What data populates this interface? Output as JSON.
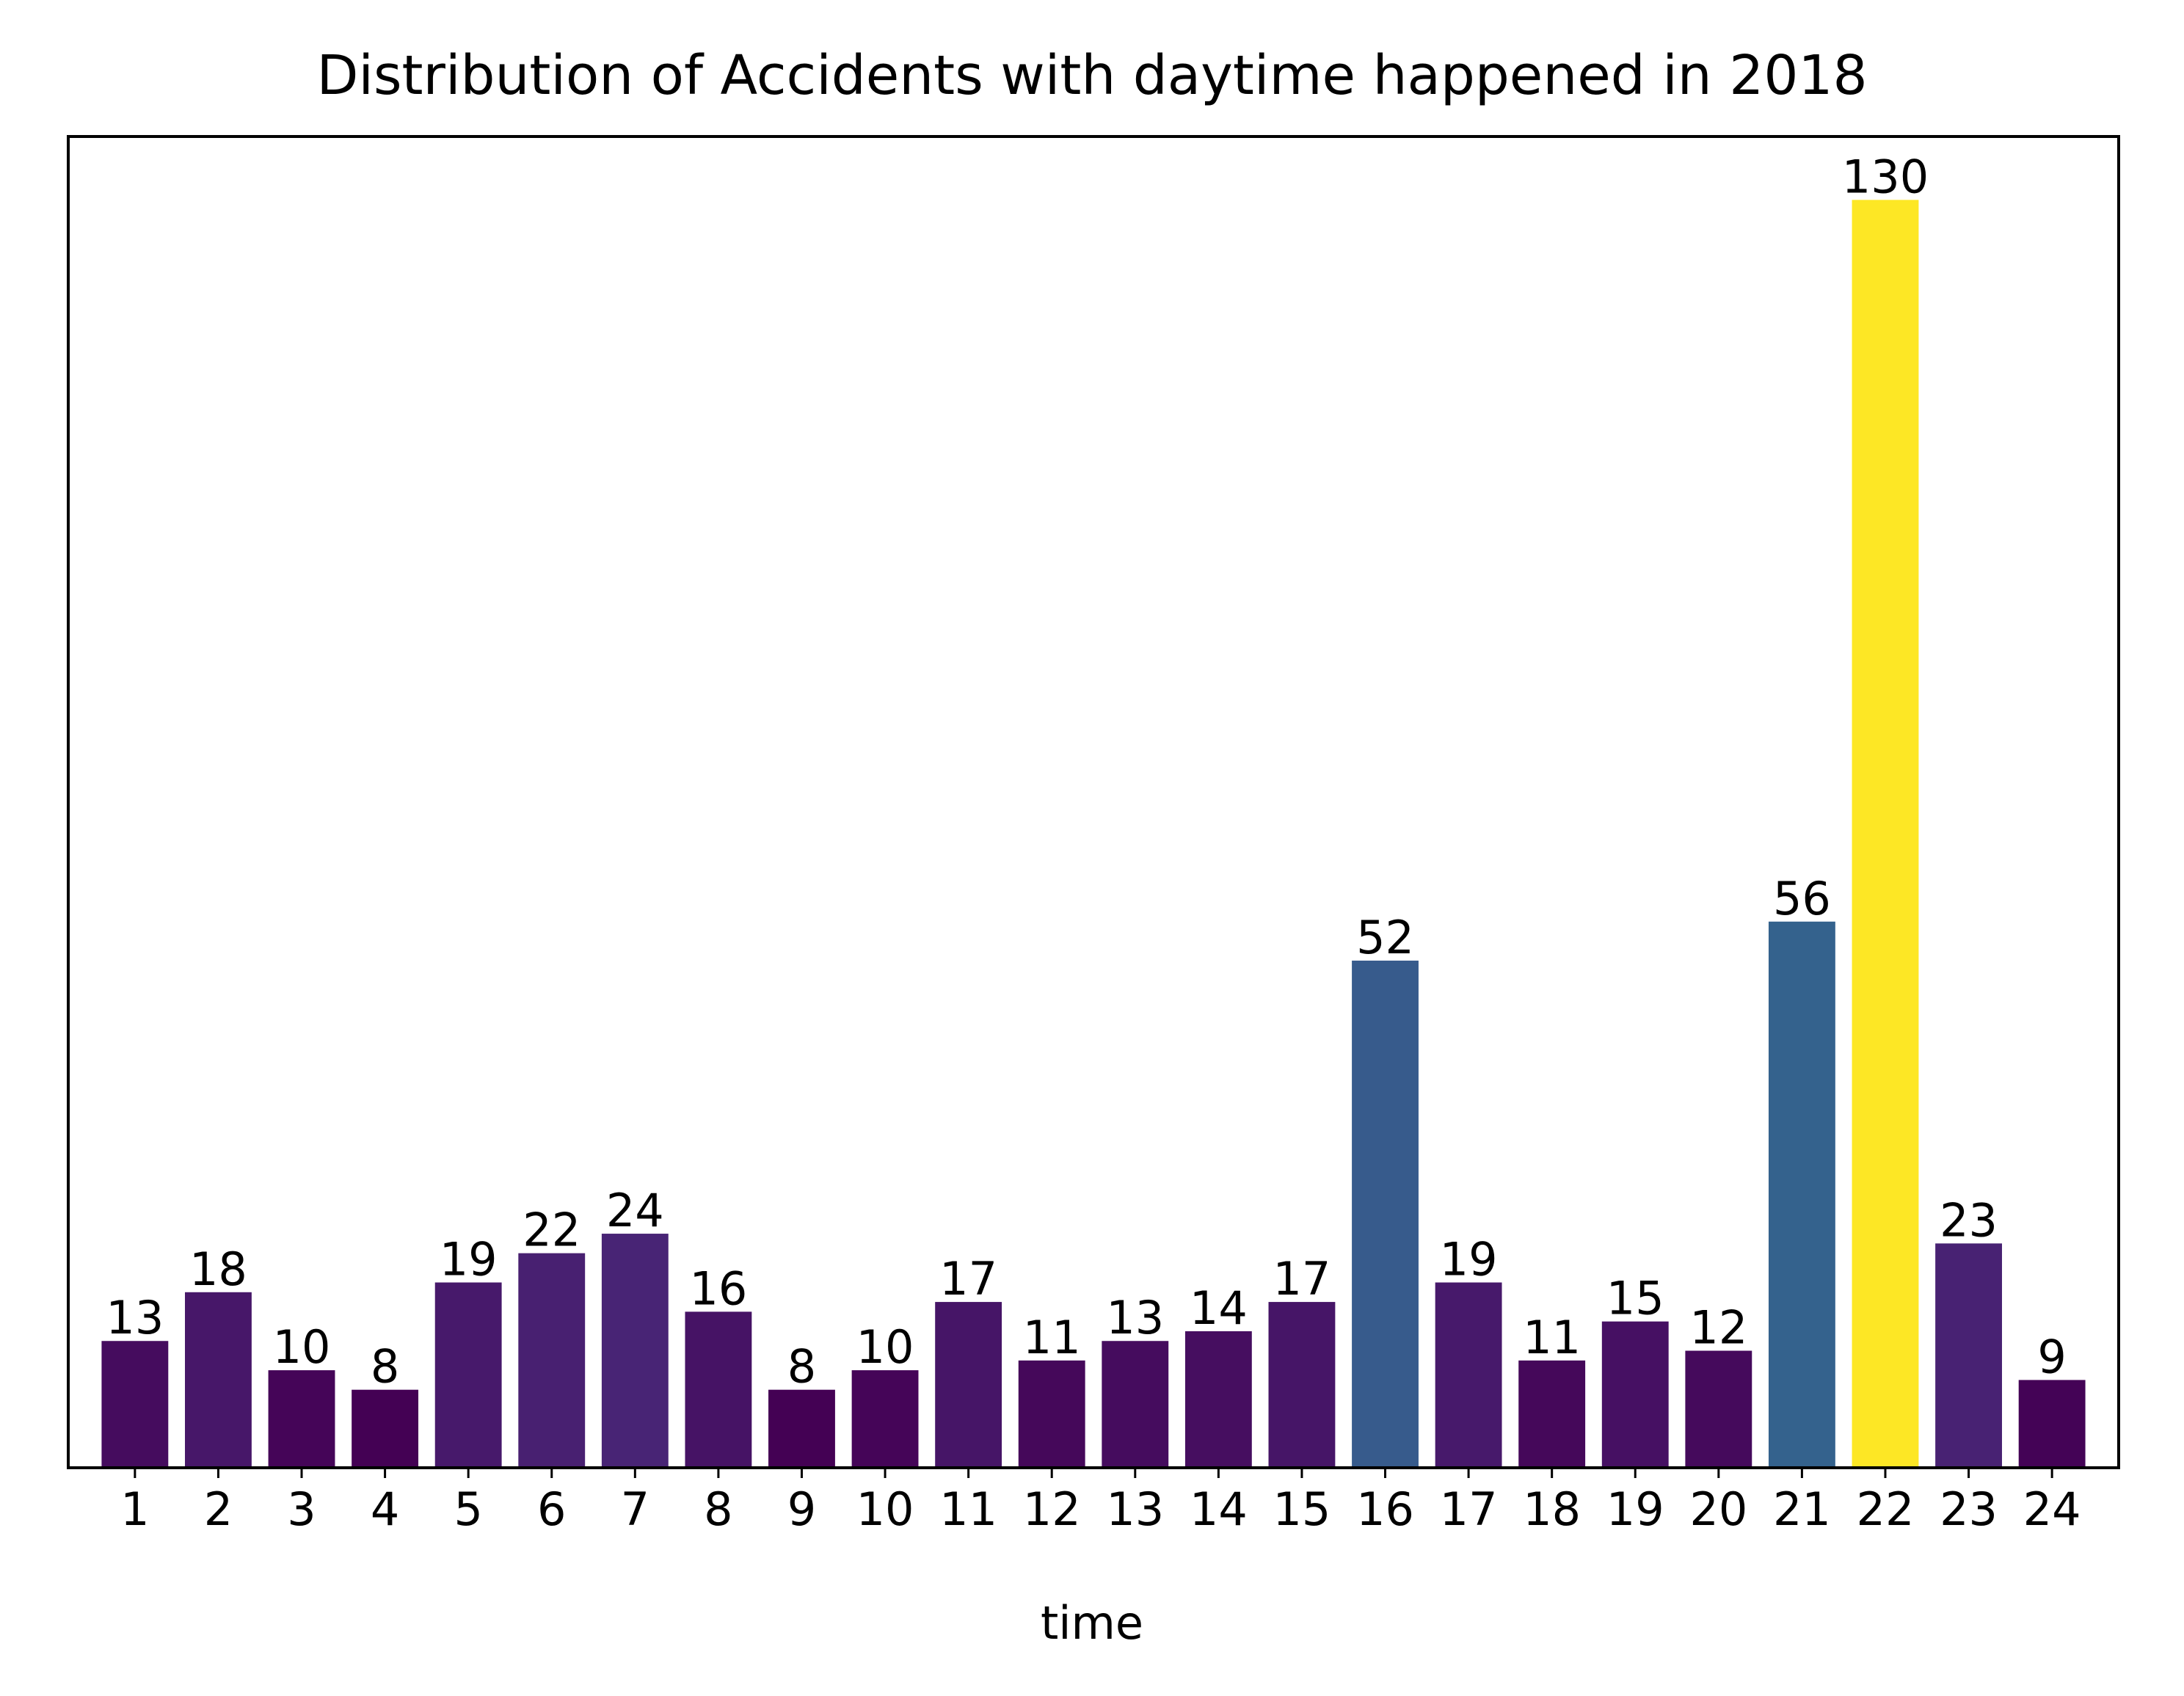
{
  "chart_data": {
    "type": "bar",
    "title": "Distribution of Accidents with daytime happened in 2018",
    "xlabel": "time",
    "ylabel": "",
    "categories": [
      "1",
      "2",
      "3",
      "4",
      "5",
      "6",
      "7",
      "8",
      "9",
      "10",
      "11",
      "12",
      "13",
      "14",
      "15",
      "16",
      "17",
      "18",
      "19",
      "20",
      "21",
      "22",
      "23",
      "24"
    ],
    "values": [
      13,
      18,
      10,
      8,
      19,
      22,
      24,
      16,
      8,
      10,
      17,
      11,
      13,
      14,
      17,
      52,
      19,
      11,
      15,
      12,
      56,
      130,
      23,
      9
    ],
    "data_labels": [
      "13",
      "18",
      "10",
      "8",
      "19",
      "22",
      "24",
      "16",
      "8",
      "10",
      "17",
      "11",
      "13",
      "14",
      "17",
      "52",
      "19",
      "11",
      "15",
      "12",
      "56",
      "130",
      "23",
      "9"
    ],
    "ylim": [
      0,
      136.5
    ],
    "y_ticks_visible": false,
    "grid": false,
    "legend": "none",
    "colormap": "viridis"
  }
}
